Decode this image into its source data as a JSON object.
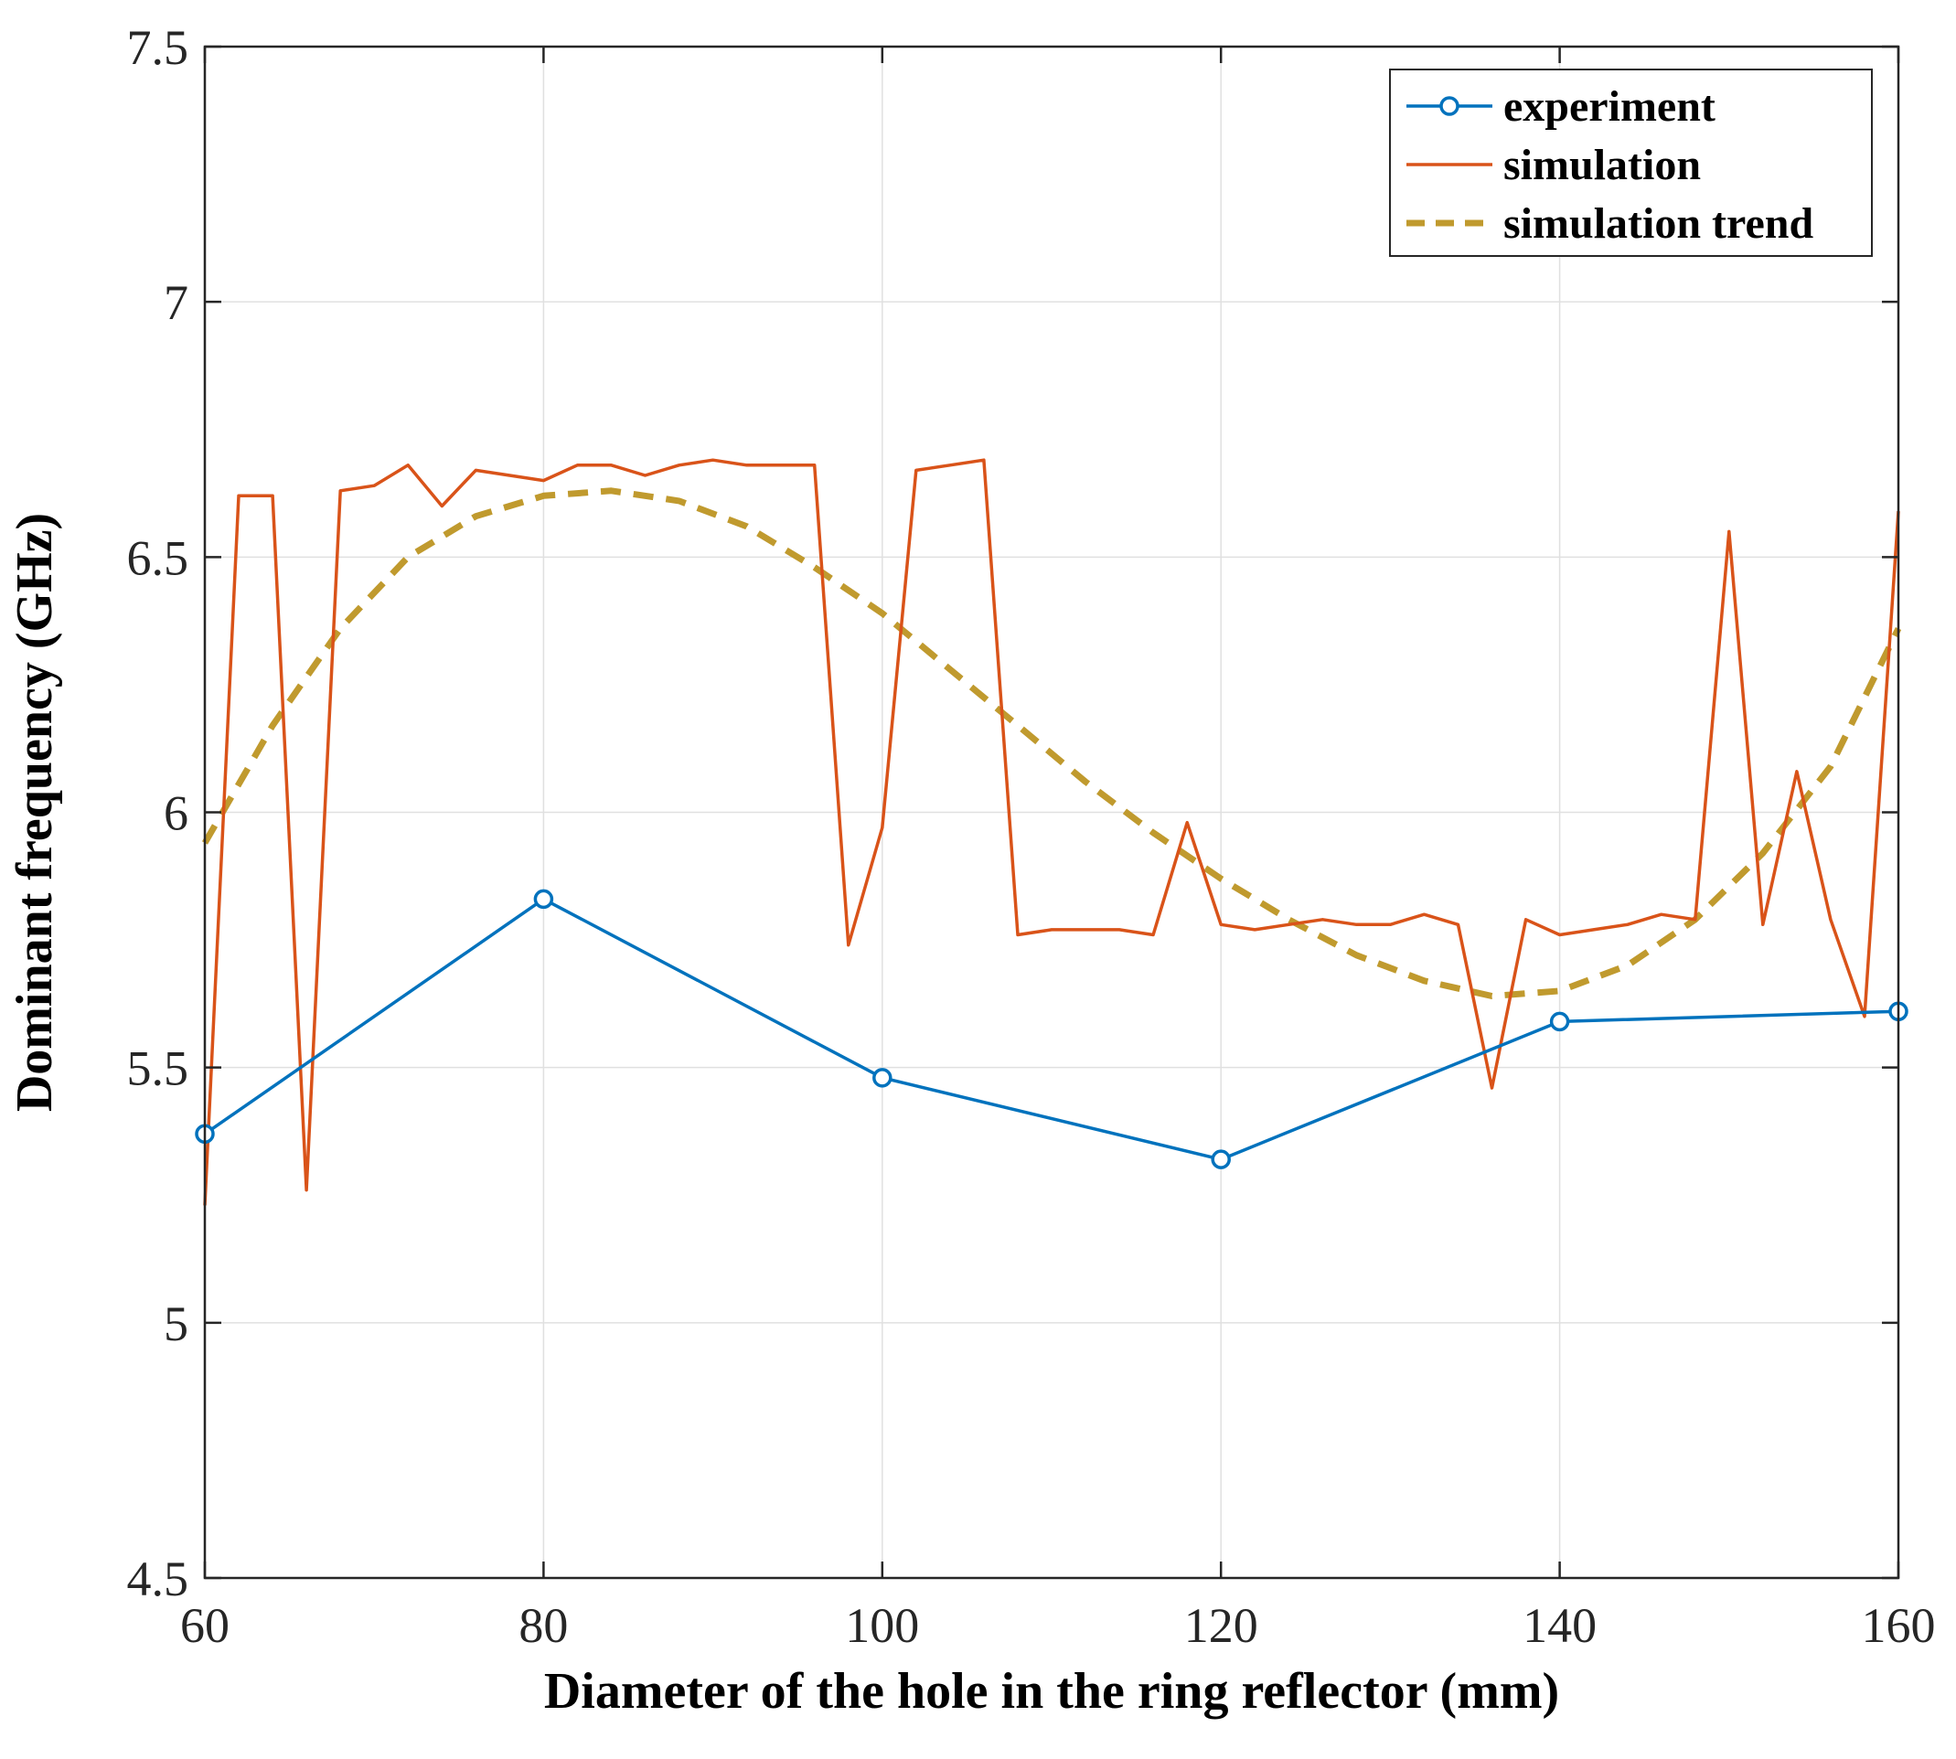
{
  "chart_data": {
    "type": "line",
    "title": "",
    "xlabel": "Diameter  of the  hole  in the ring reflector (mm)",
    "ylabel": "Dominant frequency (GHz)",
    "xlim": [
      60,
      160
    ],
    "ylim": [
      4.5,
      7.5
    ],
    "xticks": [
      60,
      80,
      100,
      120,
      140,
      160
    ],
    "xtick_labels": [
      "60",
      "80",
      "100",
      "120",
      "140",
      "160"
    ],
    "yticks": [
      4.5,
      5,
      5.5,
      6,
      6.5,
      7,
      7.5
    ],
    "ytick_labels": [
      "4.5",
      "5",
      "5.5",
      "6",
      "6.5",
      "7",
      "7.5"
    ],
    "grid": true,
    "legend_position": "top-right",
    "series": [
      {
        "name": "experiment",
        "style": "line-circle-markers",
        "color": "#0072BD",
        "x": [
          60,
          80,
          100,
          120,
          140,
          160
        ],
        "y": [
          5.37,
          5.83,
          5.48,
          5.32,
          5.59,
          5.61
        ]
      },
      {
        "name": "simulation",
        "style": "line",
        "color": "#D95319",
        "x": [
          60,
          62,
          64,
          66,
          68,
          70,
          72,
          74,
          76,
          78,
          80,
          82,
          84,
          86,
          88,
          90,
          92,
          94,
          96,
          98,
          100,
          102,
          104,
          106,
          108,
          110,
          112,
          114,
          116,
          118,
          120,
          122,
          124,
          126,
          128,
          130,
          132,
          134,
          136,
          138,
          140,
          142,
          144,
          146,
          148,
          150,
          152,
          154,
          156,
          158,
          160
        ],
        "y": [
          5.23,
          6.62,
          6.62,
          5.26,
          6.63,
          6.64,
          6.68,
          6.6,
          6.67,
          6.66,
          6.65,
          6.68,
          6.68,
          6.66,
          6.68,
          6.69,
          6.68,
          6.68,
          6.68,
          5.74,
          5.97,
          6.67,
          6.68,
          6.69,
          5.76,
          5.77,
          5.77,
          5.77,
          5.76,
          5.98,
          5.78,
          5.77,
          5.78,
          5.79,
          5.78,
          5.78,
          5.8,
          5.78,
          5.46,
          5.79,
          5.76,
          5.77,
          5.78,
          5.8,
          5.79,
          6.55,
          5.78,
          6.08,
          5.79,
          5.6,
          6.59
        ]
      },
      {
        "name": "simulation trend",
        "style": "dashed",
        "color": "#C09A2E",
        "x": [
          60,
          64,
          68,
          72,
          76,
          80,
          84,
          88,
          92,
          96,
          100,
          104,
          108,
          112,
          116,
          120,
          124,
          128,
          132,
          136,
          140,
          144,
          148,
          152,
          156,
          160
        ],
        "y": [
          5.94,
          6.17,
          6.36,
          6.5,
          6.58,
          6.62,
          6.63,
          6.61,
          6.56,
          6.48,
          6.39,
          6.28,
          6.17,
          6.06,
          5.96,
          5.87,
          5.79,
          5.72,
          5.67,
          5.64,
          5.65,
          5.7,
          5.79,
          5.92,
          6.09,
          6.36
        ]
      }
    ]
  }
}
